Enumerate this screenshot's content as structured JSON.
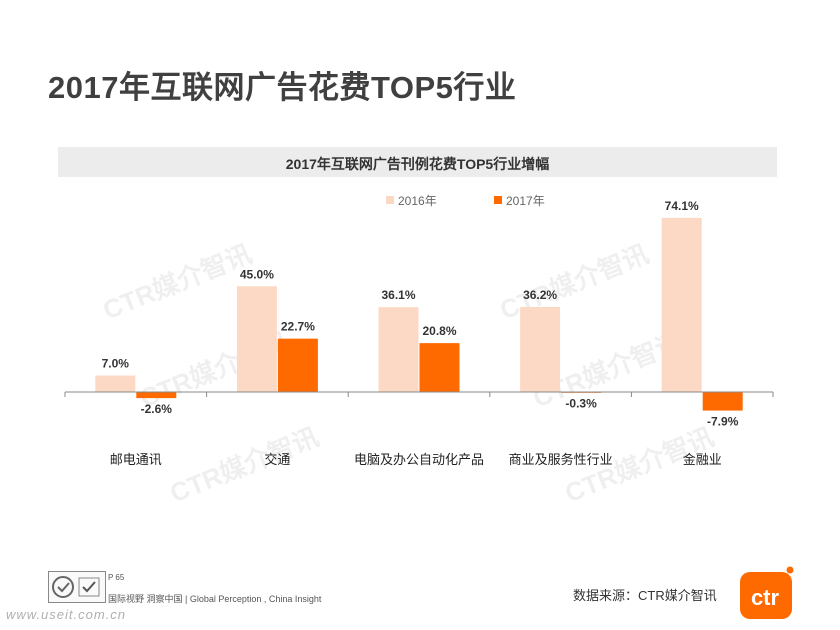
{
  "page": {
    "title": "2017年互联网广告花费TOP5行业",
    "footer": {
      "page_number": "P 65",
      "slogan": "国际视野 洞察中国 | Global Perception , China Insight",
      "website": "www.useit.com.cn",
      "source": "数据来源：CTR媒介智讯"
    },
    "watermark_text": "CTR媒介智讯",
    "logo_text": "ctr"
  },
  "colors": {
    "series_2016": "#fcd9c4",
    "series_2017": "#ff6a00",
    "axis": "#888888",
    "text": "#333333"
  },
  "chart_data": {
    "type": "bar",
    "title": "2017年互联网广告刊例花费TOP5行业增幅",
    "categories": [
      "邮电通讯",
      "交通",
      "电脑及办公自动化产品",
      "商业及服务性行业",
      "金融业"
    ],
    "series": [
      {
        "name": "2016年",
        "values": [
          7.0,
          45.0,
          36.1,
          36.2,
          74.1
        ],
        "labels": [
          "7.0%",
          "45.0%",
          "36.1%",
          "36.2%",
          "74.1%"
        ]
      },
      {
        "name": "2017年",
        "values": [
          -2.6,
          22.7,
          20.8,
          -0.3,
          -7.9
        ],
        "labels": [
          "-2.6%",
          "22.7%",
          "20.8%",
          "-0.3%",
          "-7.9%"
        ]
      }
    ],
    "unit": "%",
    "legend_position": "top-center",
    "grid": false
  }
}
